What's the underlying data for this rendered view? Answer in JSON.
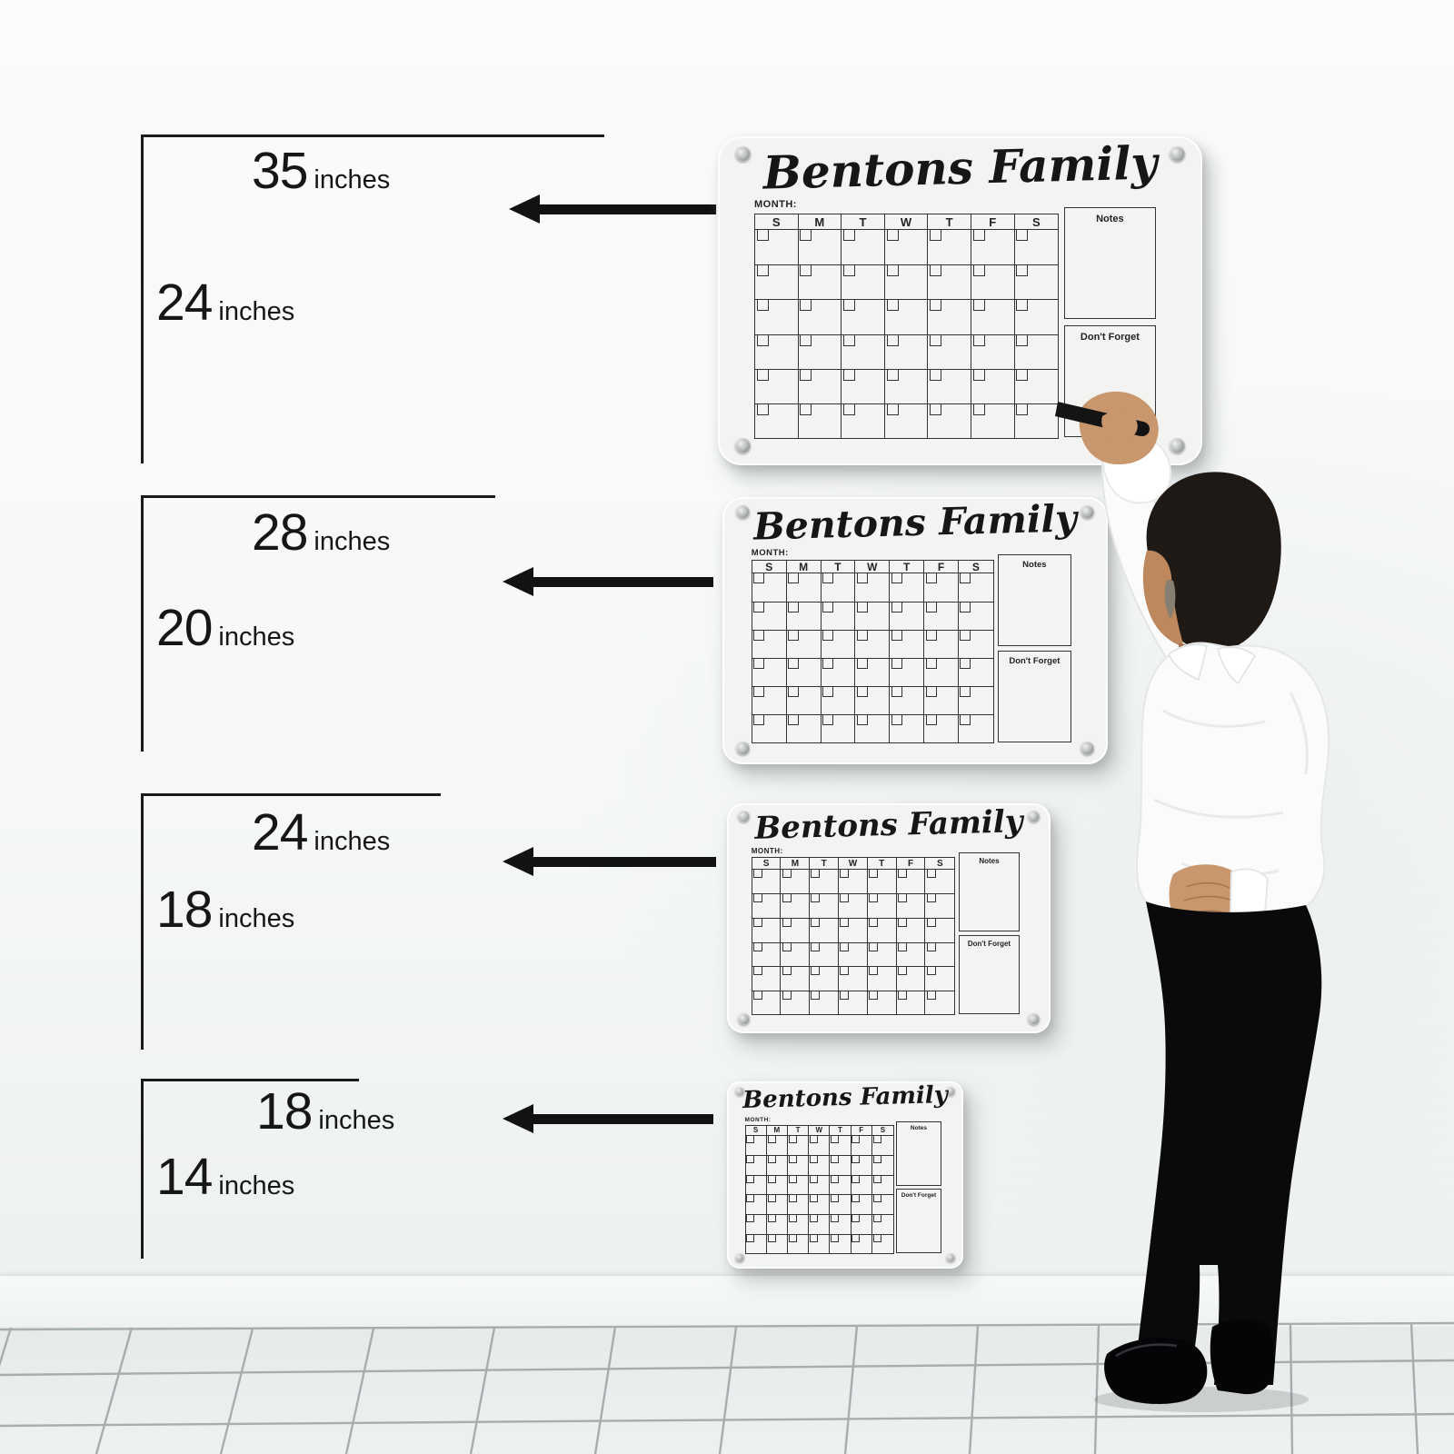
{
  "size_annotations": [
    {
      "width": "35",
      "width_unit": "inches",
      "height": "24",
      "height_unit": "inches"
    },
    {
      "width": "28",
      "width_unit": "inches",
      "height": "20",
      "height_unit": "inches"
    },
    {
      "width": "24",
      "width_unit": "inches",
      "height": "18",
      "height_unit": "inches"
    },
    {
      "width": "18",
      "width_unit": "inches",
      "height": "14",
      "height_unit": "inches"
    }
  ],
  "calendars": [
    {
      "title": "Bentons Family",
      "month_label": "MONTH:",
      "weekdays": [
        "S",
        "M",
        "T",
        "W",
        "T",
        "F",
        "S"
      ],
      "notes_label": "Notes",
      "dont_forget_label": "Don't Forget"
    },
    {
      "title": "Bentons Family",
      "month_label": "MONTH:",
      "weekdays": [
        "S",
        "M",
        "T",
        "W",
        "T",
        "F",
        "S"
      ],
      "notes_label": "Notes",
      "dont_forget_label": "Don't Forget"
    },
    {
      "title": "Bentons Family",
      "month_label": "MONTH:",
      "weekdays": [
        "S",
        "M",
        "T",
        "W",
        "T",
        "F",
        "S"
      ],
      "notes_label": "Notes",
      "dont_forget_label": "Don't Forget"
    },
    {
      "title": "Bentons Family",
      "month_label": "MONTH:",
      "weekdays": [
        "S",
        "M",
        "T",
        "W",
        "T",
        "F",
        "S"
      ],
      "notes_label": "Notes",
      "dont_forget_label": "Don't Forget"
    }
  ],
  "icons": {
    "arrow": "arrow-left-icon",
    "screw": "screw-icon",
    "pen": "marker-pen-icon"
  },
  "colors": {
    "wall": "#f7f9f9",
    "board": "#f3f4f2",
    "grid_line": "#333333",
    "text": "#1a1a1a",
    "arrow": "#121212",
    "floor_tile": "#e9eded",
    "grout": "#9aa3a3",
    "shirt": "#fbfbfb",
    "pants": "#0a0a0c",
    "skin": "#c9976d",
    "hair": "#1f1916"
  }
}
